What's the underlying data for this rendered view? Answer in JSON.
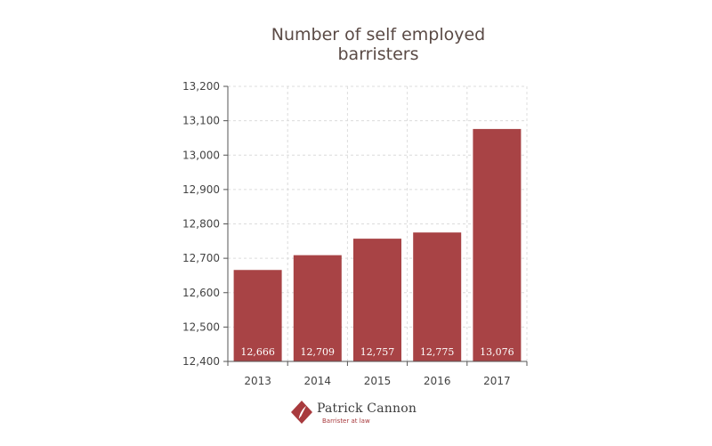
{
  "chart_data": {
    "type": "bar",
    "title": "Number of self employed barristers",
    "title_lines": [
      "Number of self employed",
      "barristers"
    ],
    "categories": [
      "2013",
      "2014",
      "2015",
      "2016",
      "2017"
    ],
    "values": [
      12666,
      12709,
      12757,
      12775,
      13076
    ],
    "data_labels": [
      "12,666",
      "12,709",
      "12,757",
      "12,775",
      "13,076"
    ],
    "ylim": [
      12400,
      13200
    ],
    "yticks": [
      12400,
      12500,
      12600,
      12700,
      12800,
      12900,
      13000,
      13100,
      13200
    ],
    "ytick_labels": [
      "12,400",
      "12,500",
      "12,600",
      "12,700",
      "12,800",
      "12,900",
      "13,000",
      "13,100",
      "13,200"
    ],
    "xlabel": "",
    "ylabel": "",
    "grid": true,
    "bar_color": "#a84345",
    "grid_color": "#dcdcdc"
  },
  "brand": {
    "name": "Patrick Cannon",
    "tagline": "Barrister at law",
    "logo_icon": "quill-diamond-icon",
    "accent_color": "#a83a3d"
  }
}
